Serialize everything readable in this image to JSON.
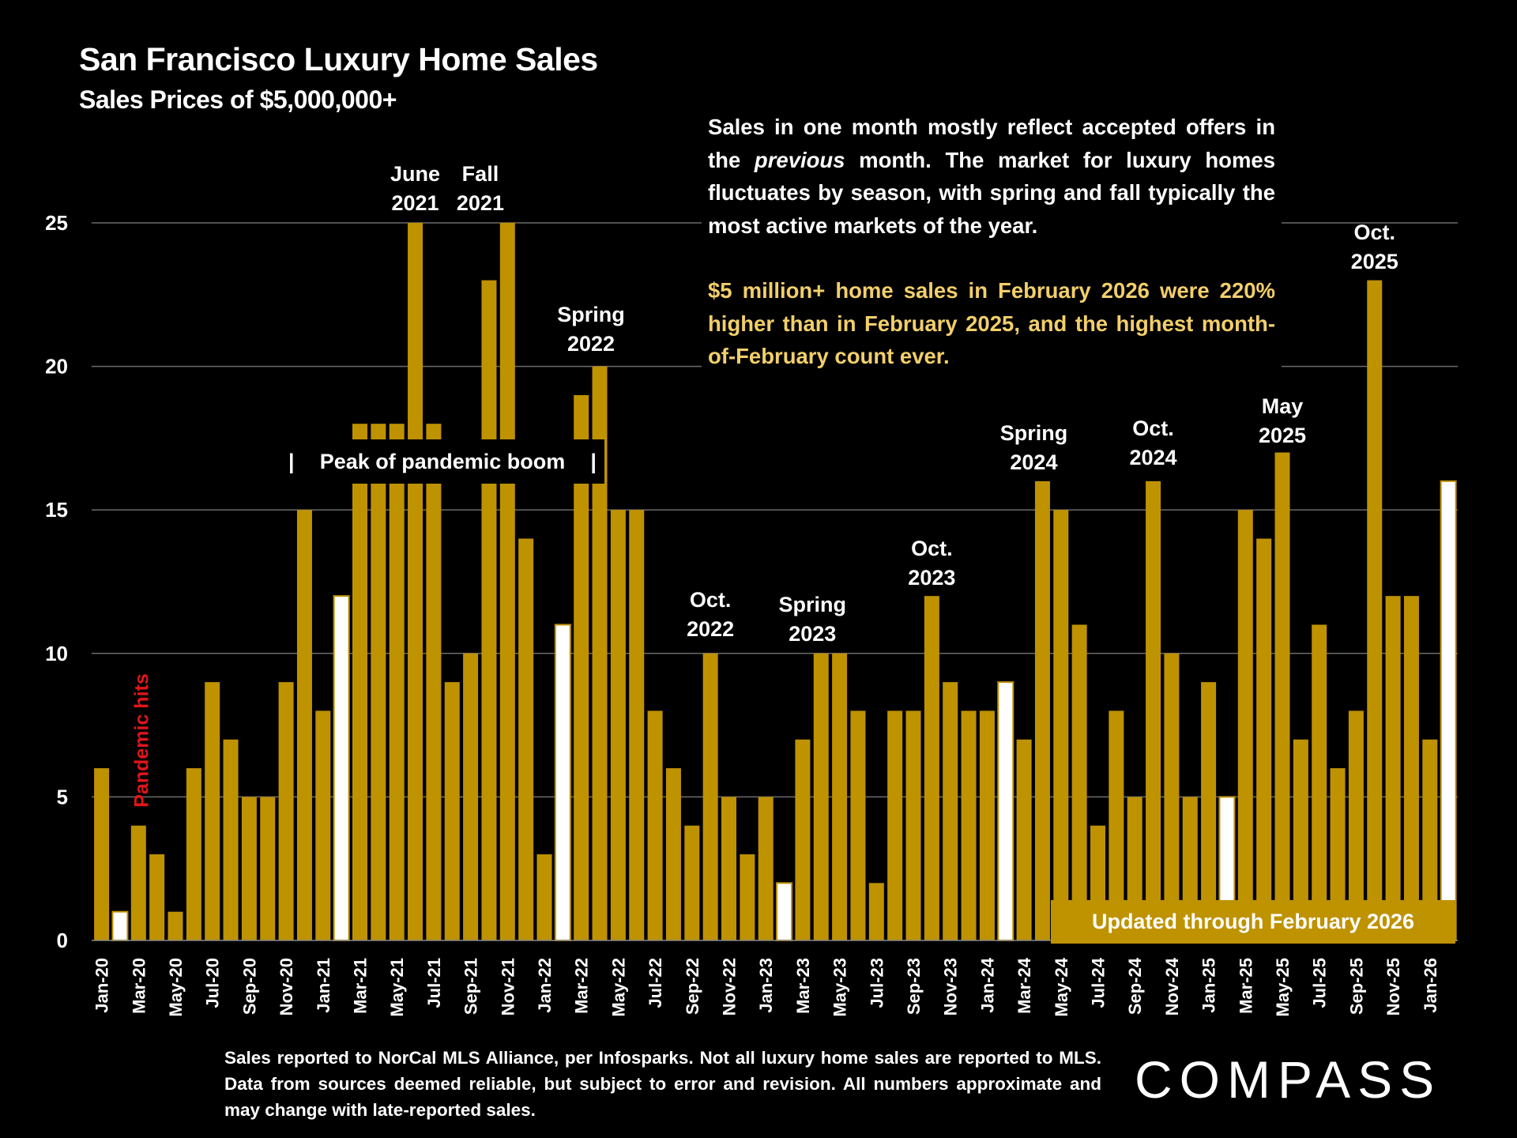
{
  "title": "San Francisco Luxury Home Sales",
  "subtitle": "Sales Prices of $5,000,000+",
  "note": {
    "p1_before": "Sales in one month mostly reflect accepted offers in the ",
    "p1_em": "previous",
    "p1_after": " month. The market for luxury homes fluctuates by season, with spring and fall typically the most active markets of the year.",
    "p2": "$5 million+ home sales in February 2026 were 220% higher than in February 2025, and the highest month-of-February count ever."
  },
  "peak_label": "Peak of pandemic boom",
  "peak_bar": "|",
  "pandemic_label": "Pandemic hits",
  "updated_label": "Updated through February 2026",
  "footer": "Sales reported to NorCal MLS Alliance, per  Infosparks. Not all luxury home sales are reported to MLS. Data from sources deemed reliable, but subject to error and revision. All numbers approximate and may change with late-reported sales.",
  "logo": "COMPASS",
  "colors": {
    "bar": "#BF9200",
    "highlight_bar": "#FFFFFF",
    "background": "#000000",
    "pandemic": "#E0161B",
    "note_highlight": "#F2CF6A"
  },
  "annotations": [
    {
      "month": "Jun-21",
      "lines": [
        "June",
        "2021"
      ]
    },
    {
      "month": "Oct-21",
      "lines": [
        "Fall",
        "2021"
      ]
    },
    {
      "month": "Apr-22",
      "lines": [
        "Spring",
        "2022"
      ]
    },
    {
      "month": "Oct-22",
      "lines": [
        "Oct.",
        "2022"
      ]
    },
    {
      "month": "Apr-23",
      "lines": [
        "Spring",
        "2023"
      ]
    },
    {
      "month": "Oct-23",
      "lines": [
        "Oct.",
        "2023"
      ]
    },
    {
      "month": "Apr-24",
      "lines": [
        "Spring",
        "2024"
      ]
    },
    {
      "month": "Oct-24",
      "lines": [
        "Oct.",
        "2024"
      ]
    },
    {
      "month": "May-25",
      "lines": [
        "May",
        "2025"
      ]
    },
    {
      "month": "Oct-25",
      "lines": [
        "Oct.",
        "2025"
      ]
    }
  ],
  "chart_data": {
    "type": "bar",
    "title": "San Francisco Luxury Home Sales",
    "subtitle": "Sales Prices of $5,000,000+",
    "ylim": [
      0,
      25
    ],
    "yticks": [
      0,
      5,
      10,
      15,
      20,
      25
    ],
    "grid": true,
    "categories": [
      "Jan-20",
      "Feb-20",
      "Mar-20",
      "Apr-20",
      "May-20",
      "Jun-20",
      "Jul-20",
      "Aug-20",
      "Sep-20",
      "Oct-20",
      "Nov-20",
      "Dec-20",
      "Jan-21",
      "Feb-21",
      "Mar-21",
      "Apr-21",
      "May-21",
      "Jun-21",
      "Jul-21",
      "Aug-21",
      "Sep-21",
      "Oct-21",
      "Nov-21",
      "Dec-21",
      "Jan-22",
      "Feb-22",
      "Mar-22",
      "Apr-22",
      "May-22",
      "Jun-22",
      "Jul-22",
      "Aug-22",
      "Sep-22",
      "Oct-22",
      "Nov-22",
      "Dec-22",
      "Jan-23",
      "Feb-23",
      "Mar-23",
      "Apr-23",
      "May-23",
      "Jun-23",
      "Jul-23",
      "Aug-23",
      "Sep-23",
      "Oct-23",
      "Nov-23",
      "Dec-23",
      "Jan-24",
      "Feb-24",
      "Mar-24",
      "Apr-24",
      "May-24",
      "Jun-24",
      "Jul-24",
      "Aug-24",
      "Sep-24",
      "Oct-24",
      "Nov-24",
      "Dec-24",
      "Jan-25",
      "Feb-25",
      "Mar-25",
      "Apr-25",
      "May-25",
      "Jun-25",
      "Jul-25",
      "Aug-25",
      "Sep-25",
      "Oct-25",
      "Nov-25",
      "Dec-25",
      "Jan-26",
      "Feb-26"
    ],
    "values": [
      6,
      1,
      4,
      3,
      1,
      6,
      9,
      7,
      5,
      5,
      9,
      15,
      8,
      12,
      18,
      18,
      18,
      25,
      18,
      9,
      10,
      23,
      25,
      14,
      3,
      11,
      19,
      20,
      15,
      15,
      8,
      6,
      4,
      10,
      5,
      3,
      5,
      2,
      7,
      10,
      10,
      8,
      2,
      8,
      8,
      12,
      9,
      8,
      8,
      9,
      7,
      16,
      15,
      11,
      4,
      8,
      5,
      16,
      10,
      5,
      9,
      5,
      15,
      14,
      17,
      7,
      11,
      6,
      8,
      23,
      12,
      12,
      7,
      16
    ],
    "highlighted": [
      "Feb-20",
      "Feb-21",
      "Feb-22",
      "Feb-23",
      "Feb-24",
      "Feb-25",
      "Feb-26"
    ],
    "xtick_labels": [
      "Jan-20",
      "Mar-20",
      "May-20",
      "Jul-20",
      "Sep-20",
      "Nov-20",
      "Jan-21",
      "Mar-21",
      "May-21",
      "Jul-21",
      "Sep-21",
      "Nov-21",
      "Jan-22",
      "Mar-22",
      "May-22",
      "Jul-22",
      "Sep-22",
      "Nov-22",
      "Jan-23",
      "Mar-23",
      "May-23",
      "Jul-23",
      "Sep-23",
      "Nov-23",
      "Jan-24",
      "Mar-24",
      "May-24",
      "Jul-24",
      "Sep-24",
      "Nov-24",
      "Jan-25",
      "Mar-25",
      "May-25",
      "Jul-25",
      "Sep-25",
      "Nov-25",
      "Jan-26"
    ]
  }
}
